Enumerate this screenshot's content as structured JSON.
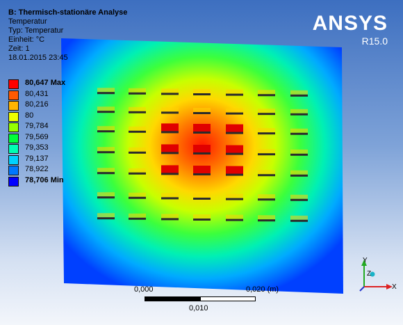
{
  "info": {
    "title": "B: Thermisch-stationäre Analyse",
    "lines": [
      "Temperatur",
      "Typ: Temperatur",
      "Einheit: °C",
      "Zeit: 1",
      "18.01.2015 23:45"
    ]
  },
  "legend": [
    {
      "label": "80,647 Max",
      "color": "#ff0000",
      "bold": true
    },
    {
      "label": "80,431",
      "color": "#ff5a00",
      "bold": false
    },
    {
      "label": "80,216",
      "color": "#ffb400",
      "bold": false
    },
    {
      "label": "80",
      "color": "#f0ff00",
      "bold": false
    },
    {
      "label": "79,784",
      "color": "#96ff00",
      "bold": false
    },
    {
      "label": "79,569",
      "color": "#00ff3c",
      "bold": false
    },
    {
      "label": "79,353",
      "color": "#00ffb4",
      "bold": false
    },
    {
      "label": "79,137",
      "color": "#00d2ff",
      "bold": false
    },
    {
      "label": "78,922",
      "color": "#0078ff",
      "bold": false
    },
    {
      "label": "78,706 Min",
      "color": "#0000ff",
      "bold": true
    }
  ],
  "logo": {
    "name": "ANSYS",
    "version": "R15.0"
  },
  "scale": {
    "start": "0,000",
    "end": "0,020 (m)",
    "mid": "0,010"
  },
  "axes": {
    "y": "Y",
    "z": "Z",
    "x": "X"
  }
}
